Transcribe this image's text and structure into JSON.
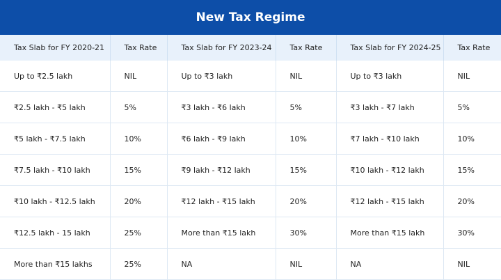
{
  "title": "New Tax Regime",
  "headers": [
    "Tax Slab for FY 2020-21",
    "Tax Rate",
    "Tax Slab for FY 2023-24",
    "Tax Rate",
    "Tax Slab for FY 2024-25",
    "Tax Rate"
  ],
  "rows": [
    [
      "Up to ₹2.5 lakh",
      "NIL",
      "Up to ₹3 lakh",
      "NIL",
      "Up to ₹3 lakh",
      "NIL"
    ],
    [
      "₹2.5 lakh - ₹5 lakh",
      "5%",
      "₹3 lakh - ₹6 lakh",
      "5%",
      "₹3 lakh - ₹7 lakh",
      "5%"
    ],
    [
      "₹5 lakh - ₹7.5 lakh",
      "10%",
      "₹6 lakh - ₹9 lakh",
      "10%",
      "₹7 lakh - ₹10 lakh",
      "10%"
    ],
    [
      "₹7.5 lakh - ₹10 lakh",
      "15%",
      "₹9 lakh - ₹12 lakh",
      "15%",
      "₹10 lakh - ₹12 lakh",
      "15%"
    ],
    [
      "₹10 lakh - ₹12.5 lakh",
      "20%",
      "₹12 lakh - ₹15 lakh",
      "20%",
      "₹12 lakh - ₹15 lakh",
      "20%"
    ],
    [
      "₹12.5 lakh - 15 lakh",
      "25%",
      "More than ₹15 lakh",
      "30%",
      "More than ₹15 lakh",
      "30%"
    ],
    [
      "More than ₹15 lakhs",
      "25%",
      "NA",
      "NIL",
      "NA",
      "NIL"
    ]
  ],
  "colors": {
    "header_bg": "#0d4ea8",
    "column_header_bg": "#e8f1fb"
  }
}
